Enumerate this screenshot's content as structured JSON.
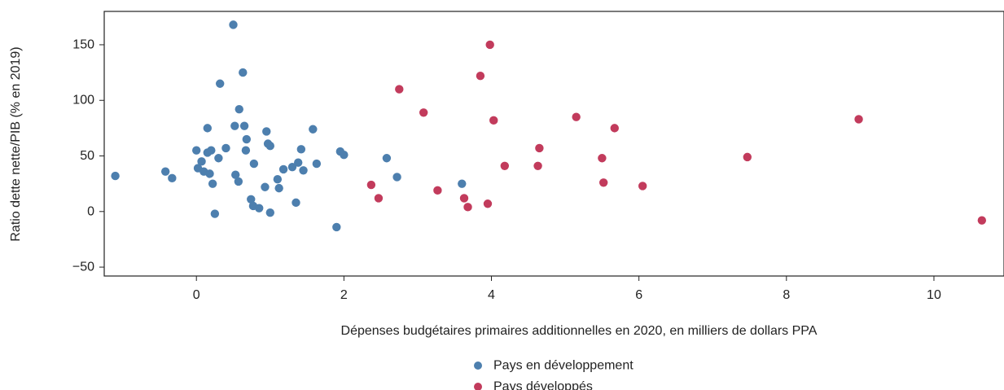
{
  "chart_data": {
    "type": "scatter",
    "xlabel": "Dépenses budgétaires primaires additionnelles en 2020, en milliers de dollars PPA",
    "ylabel": "Ratio dette nette/PIB (% en 2019)",
    "xlim": [
      -1.25,
      10.95
    ],
    "ylim": [
      -58,
      180
    ],
    "xticks": [
      0,
      2,
      4,
      6,
      8,
      10
    ],
    "yticks": [
      -50,
      0,
      50,
      100,
      150
    ],
    "xtick_labels": [
      "0",
      "2",
      "4",
      "6",
      "8",
      "10"
    ],
    "ytick_labels": [
      "−50",
      "0",
      "50",
      "100",
      "150"
    ],
    "grid": false,
    "legend_position": "bottom-center",
    "series": [
      {
        "name": "Pays en développement",
        "color": "#4d7fae",
        "points": [
          [
            -1.1,
            32
          ],
          [
            -0.42,
            36
          ],
          [
            -0.33,
            30
          ],
          [
            0.0,
            55
          ],
          [
            0.02,
            39
          ],
          [
            0.07,
            45
          ],
          [
            0.1,
            36
          ],
          [
            0.15,
            75
          ],
          [
            0.15,
            53
          ],
          [
            0.18,
            34
          ],
          [
            0.2,
            55
          ],
          [
            0.22,
            25
          ],
          [
            0.25,
            -2
          ],
          [
            0.3,
            48
          ],
          [
            0.32,
            115
          ],
          [
            0.4,
            57
          ],
          [
            0.5,
            168
          ],
          [
            0.52,
            77
          ],
          [
            0.53,
            33
          ],
          [
            0.57,
            27
          ],
          [
            0.58,
            92
          ],
          [
            0.63,
            125
          ],
          [
            0.65,
            77
          ],
          [
            0.67,
            55
          ],
          [
            0.68,
            65
          ],
          [
            0.74,
            11
          ],
          [
            0.77,
            5
          ],
          [
            0.78,
            43
          ],
          [
            0.85,
            3
          ],
          [
            0.93,
            22
          ],
          [
            0.95,
            72
          ],
          [
            0.97,
            61
          ],
          [
            1.0,
            59
          ],
          [
            1.0,
            -1
          ],
          [
            1.1,
            29
          ],
          [
            1.12,
            21
          ],
          [
            1.18,
            38
          ],
          [
            1.3,
            40
          ],
          [
            1.35,
            8
          ],
          [
            1.38,
            44
          ],
          [
            1.42,
            56
          ],
          [
            1.45,
            37
          ],
          [
            1.58,
            74
          ],
          [
            1.63,
            43
          ],
          [
            1.9,
            -14
          ],
          [
            1.95,
            54
          ],
          [
            2.0,
            51
          ],
          [
            2.58,
            48
          ],
          [
            2.72,
            31
          ],
          [
            3.6,
            25
          ]
        ]
      },
      {
        "name": "Pays développés",
        "color": "#c23b5c",
        "points": [
          [
            2.37,
            24
          ],
          [
            2.47,
            12
          ],
          [
            2.75,
            110
          ],
          [
            3.08,
            89
          ],
          [
            3.27,
            19
          ],
          [
            3.63,
            12
          ],
          [
            3.68,
            4
          ],
          [
            3.85,
            122
          ],
          [
            3.95,
            7
          ],
          [
            3.98,
            150
          ],
          [
            4.03,
            82
          ],
          [
            4.18,
            41
          ],
          [
            4.63,
            41
          ],
          [
            4.65,
            57
          ],
          [
            5.15,
            85
          ],
          [
            5.5,
            48
          ],
          [
            5.52,
            26
          ],
          [
            5.67,
            75
          ],
          [
            6.05,
            23
          ],
          [
            7.47,
            49
          ],
          [
            8.98,
            83
          ],
          [
            10.65,
            -8
          ]
        ]
      }
    ]
  }
}
